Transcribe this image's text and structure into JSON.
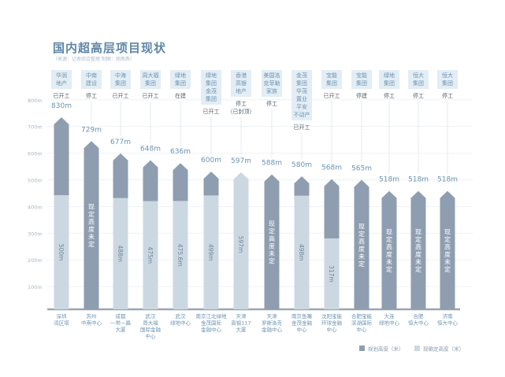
{
  "chart_data": {
    "type": "bar",
    "title": "国内超高层项目现状",
    "subtitle": "（来源：记者综合整理  制图：胡燕燕）",
    "ylim": [
      0,
      850
    ],
    "yticks": [
      "100m",
      "200m",
      "300m",
      "400m",
      "500m",
      "600m",
      "700m",
      "800m"
    ],
    "grid": true,
    "legend_position": "bottom-right",
    "colors": {
      "planned": "#8e9eb0",
      "confirmed": "#cbd8e2",
      "company_box": "#e3edf4",
      "text": "#5e86a8"
    },
    "series": [
      {
        "name": "规划高度（米）",
        "key": "planned"
      },
      {
        "name": "现确定高度（米）",
        "key": "confirmed"
      }
    ],
    "projects": [
      {
        "name": "深圳\n湾区塔",
        "company": "华润\n地产",
        "status": "已开工",
        "planned": 830,
        "planned_label": "830m",
        "confirmed": 500,
        "confirmed_label": "500m"
      },
      {
        "name": "苏州\n中南中心",
        "company": "中南\n建设",
        "status": "停工",
        "planned": 729,
        "planned_label": "729m",
        "confirmed": null,
        "confirmed_label": "现定高度未定"
      },
      {
        "name": "成都\n一带一路\n大厦",
        "company": "中海\n集团",
        "status": "已开工",
        "planned": 677,
        "planned_label": "677m",
        "confirmed": 488,
        "confirmed_label": "488m"
      },
      {
        "name": "武汉\n周大福\n国际金融\n中心",
        "company": "周大福\n集团",
        "status": "已开工",
        "planned": 648,
        "planned_label": "648m",
        "confirmed": 475,
        "confirmed_label": "475m"
      },
      {
        "name": "武汉\n绿地中心",
        "company": "绿地\n集团",
        "status": "在建",
        "planned": 636,
        "planned_label": "636m",
        "confirmed": 475.6,
        "confirmed_label": "475.6m"
      },
      {
        "name": "南京江北绿地\n金茂国际\n金融中心",
        "company": "绿地\n集团\n金茂\n集团",
        "status": "已开工",
        "planned": 600,
        "planned_label": "600m",
        "confirmed": 499,
        "confirmed_label": "499m"
      },
      {
        "name": "天津\n高银117\n大厦",
        "company": "香港\n高银\n地产",
        "status": "停工\n（已封顶）",
        "planned": 597,
        "planned_label": "597m",
        "confirmed": 597,
        "confirmed_label": "597m"
      },
      {
        "name": "天津\n罗斯洛克\n金融中心",
        "company": "美国洛\n克菲勒\n家族",
        "status": "停工",
        "planned": 588,
        "planned_label": "588m",
        "confirmed": null,
        "confirmed_label": "现定高度未定"
      },
      {
        "name": "南京鱼嘴\n金茂金融\n中心",
        "company": "金茂\n集团\n华茂\n置业\n平安\n不动产",
        "status": "已开工",
        "planned": 580,
        "planned_label": "580m",
        "confirmed": 498,
        "confirmed_label": "498m"
      },
      {
        "name": "沈阳宝能\n环球金融\n中心",
        "company": "宝能\n集团",
        "status": "已开工",
        "planned": 568,
        "planned_label": "568m",
        "confirmed": 317,
        "confirmed_label": "317m"
      },
      {
        "name": "合肥宝能\n滨湖国际\n中心",
        "company": "宝能\n集团",
        "status": "停建",
        "planned": 565,
        "planned_label": "565m",
        "confirmed": null,
        "confirmed_label": "现定高度未定"
      },
      {
        "name": "大连\n绿地中心",
        "company": "绿地\n集团",
        "status": "停工",
        "planned": 518,
        "planned_label": "518m",
        "confirmed": null,
        "confirmed_label": "现定高度未定"
      },
      {
        "name": "合肥\n恒大中心",
        "company": "恒大\n集团",
        "status": "停工",
        "planned": 518,
        "planned_label": "518m",
        "confirmed": null,
        "confirmed_label": "现定高度未定"
      },
      {
        "name": "济南\n恒大中心",
        "company": "恒大\n集团",
        "status": "停工",
        "planned": 518,
        "planned_label": "518m",
        "confirmed": null,
        "confirmed_label": "现定高度未定"
      }
    ]
  }
}
